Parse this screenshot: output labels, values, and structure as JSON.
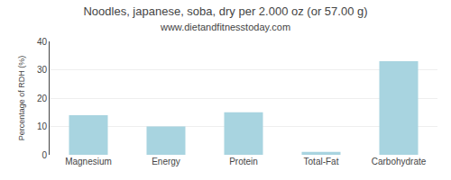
{
  "chart_data": {
    "type": "bar",
    "title": "Noodles, japanese, soba, dry per 2.000 oz (or 57.00 g)",
    "subtitle": "www.dietandfitnesstoday.com",
    "categories": [
      "Magnesium",
      "Energy",
      "Protein",
      "Total-Fat",
      "Carbohydrate"
    ],
    "values": [
      14,
      10,
      15,
      1,
      33
    ],
    "color": "#a8d4e0",
    "ylabel": "Percentage of RDH (%)",
    "ylim": [
      0,
      40
    ],
    "yticks": [
      0,
      10,
      20,
      30,
      40
    ],
    "grid": true
  }
}
